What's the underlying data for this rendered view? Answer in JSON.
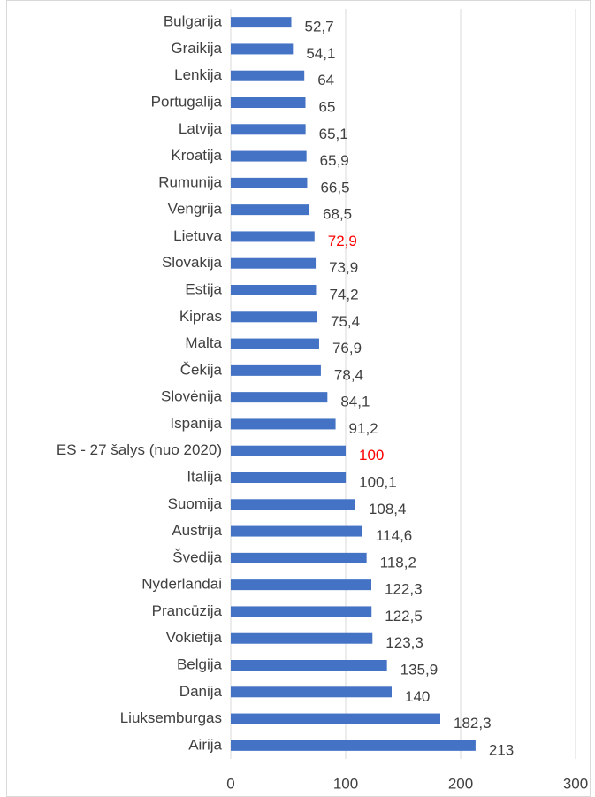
{
  "chart_data": {
    "type": "barh",
    "categories": [
      "Bulgarija",
      "Graikija",
      "Lenkija",
      "Portugalija",
      "Latvija",
      "Kroatija",
      "Rumunija",
      "Vengrija",
      "Lietuva",
      "Slovakija",
      "Estija",
      "Kipras",
      "Malta",
      "Čekija",
      "Slovėnija",
      "Ispanija",
      "ES - 27 šalys (nuo 2020)",
      "Italija",
      "Suomija",
      "Austrija",
      "Švedija",
      "Nyderlandai",
      "Prancūzija",
      "Vokietija",
      "Belgija",
      "Danija",
      "Liuksemburgas",
      "Airija"
    ],
    "values": [
      52.7,
      54.1,
      64,
      65,
      65.1,
      65.9,
      66.5,
      68.5,
      72.9,
      73.9,
      74.2,
      75.4,
      76.9,
      78.4,
      84.1,
      91.2,
      100,
      100.1,
      108.4,
      114.6,
      118.2,
      122.3,
      122.5,
      123.3,
      135.9,
      140,
      182.3,
      213
    ],
    "value_labels": [
      "52,7",
      "54,1",
      "64",
      "65",
      "65,1",
      "65,9",
      "66,5",
      "68,5",
      "72,9",
      "73,9",
      "74,2",
      "75,4",
      "76,9",
      "78,4",
      "84,1",
      "91,2",
      "100",
      "100,1",
      "108,4",
      "114,6",
      "118,2",
      "122,3",
      "122,5",
      "123,3",
      "135,9",
      "140",
      "182,3",
      "213"
    ],
    "value_label_colors": [
      "#404040",
      "#404040",
      "#404040",
      "#404040",
      "#404040",
      "#404040",
      "#404040",
      "#404040",
      "#ff0000",
      "#404040",
      "#404040",
      "#404040",
      "#404040",
      "#404040",
      "#404040",
      "#404040",
      "#ff0000",
      "#404040",
      "#404040",
      "#404040",
      "#404040",
      "#404040",
      "#404040",
      "#404040",
      "#404040",
      "#404040",
      "#404040",
      "#404040"
    ],
    "color": "#4472c4",
    "xlim": [
      0,
      300
    ],
    "xticks": [
      0,
      100,
      200,
      300
    ],
    "grid": true
  }
}
